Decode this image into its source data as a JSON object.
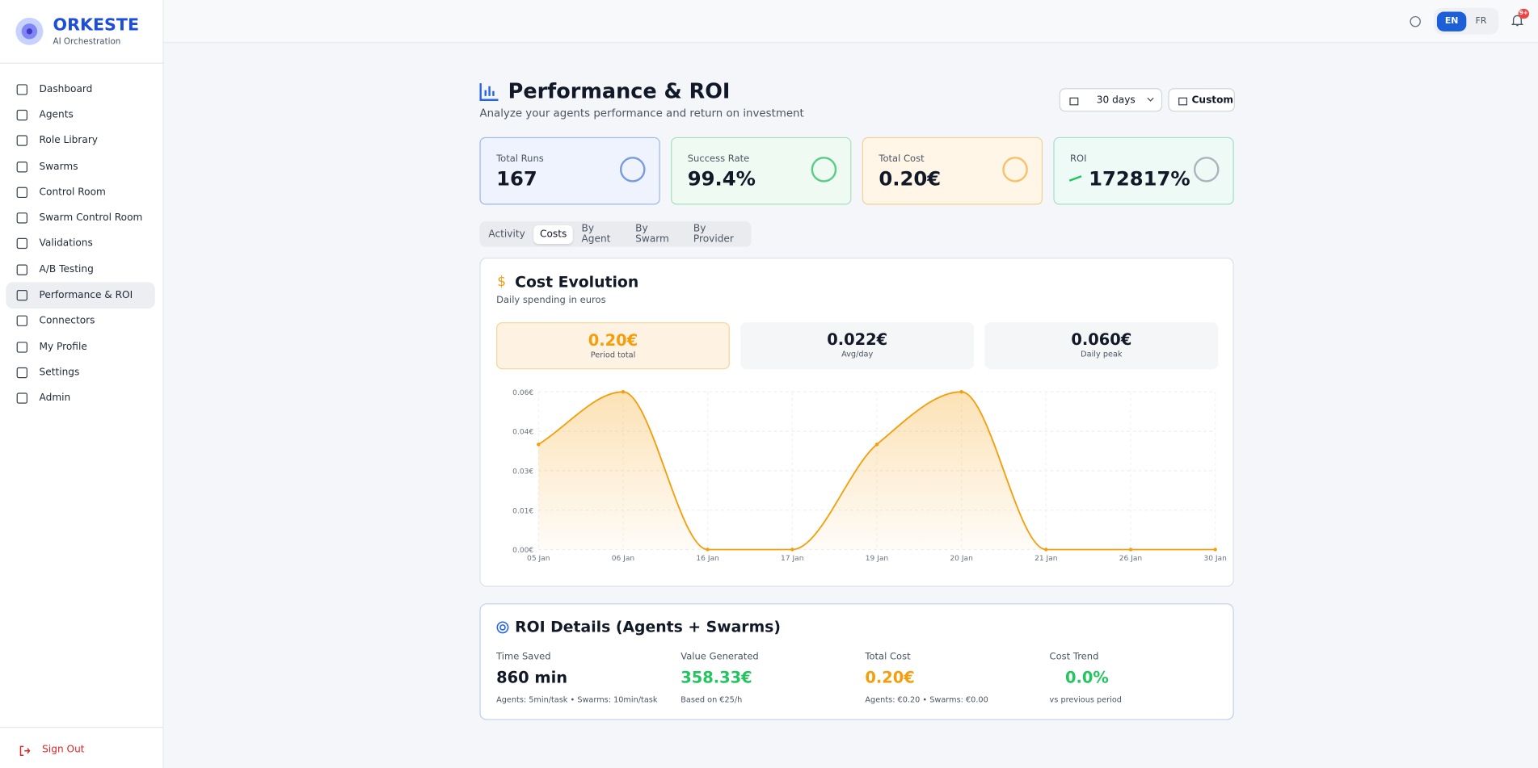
{
  "brand": {
    "name": "ORKESTE",
    "tagline": "AI Orchestration"
  },
  "nav": [
    "Dashboard",
    "Agents",
    "Role Library",
    "Swarms",
    "Control Room",
    "Swarm Control Room",
    "Validations",
    "A/B Testing",
    "Performance & ROI",
    "Connectors",
    "My Profile",
    "Settings",
    "Admin"
  ],
  "sign_out": "Sign Out",
  "topbar": {
    "languages": [
      "EN",
      "FR"
    ],
    "notification_badge": "9+"
  },
  "header": {
    "title": "Performance & ROI",
    "subtitle": "Analyze your agents performance and return on investment",
    "range": "30 days",
    "custom": "Custom"
  },
  "stats": [
    {
      "label": "Total Runs",
      "value": "167"
    },
    {
      "label": "Success Rate",
      "value": "99.4%"
    },
    {
      "label": "Total Cost",
      "value": "0.20€"
    },
    {
      "label": "ROI",
      "value": "172817%"
    }
  ],
  "tabs": [
    "Activity",
    "Costs",
    "By Agent",
    "By Swarm",
    "By Provider"
  ],
  "cost_panel": {
    "title": "Cost Evolution",
    "subtitle": "Daily spending in euros",
    "summary": [
      {
        "value": "0.20€",
        "label": "Period total"
      },
      {
        "value": "0.022€",
        "label": "Avg/day"
      },
      {
        "value": "0.060€",
        "label": "Daily peak"
      }
    ]
  },
  "chart_data": {
    "type": "line",
    "color": "#f59e0b",
    "grid": true,
    "categories": [
      "05 Jan",
      "06 Jan",
      "16 Jan",
      "17 Jan",
      "19 Jan",
      "20 Jan",
      "21 Jan",
      "26 Jan",
      "30 Jan"
    ],
    "values": [
      0.04,
      0.06,
      0,
      0,
      0.04,
      0.06,
      0,
      0,
      0
    ],
    "ylim": [
      0,
      0.06
    ],
    "yticks": [
      {
        "value": 0,
        "label": "0.00€"
      },
      {
        "value": 0.015,
        "label": "0.01€"
      },
      {
        "value": 0.03,
        "label": "0.03€"
      },
      {
        "value": 0.045,
        "label": "0.04€"
      },
      {
        "value": 0.06,
        "label": "0.06€"
      }
    ]
  },
  "roi": {
    "title": "ROI Details (Agents + Swarms)",
    "items": [
      {
        "label": "Time Saved",
        "value": "860 min",
        "note": "Agents: 5min/task • Swarms: 10min/task"
      },
      {
        "label": "Value Generated",
        "value": "358.33€",
        "note": "Based on €25/h"
      },
      {
        "label": "Total Cost",
        "value": "0.20€",
        "note": "Agents: €0.20 • Swarms: €0.00"
      },
      {
        "label": "Cost Trend",
        "value": "0.0%",
        "note": "vs previous period"
      }
    ]
  }
}
